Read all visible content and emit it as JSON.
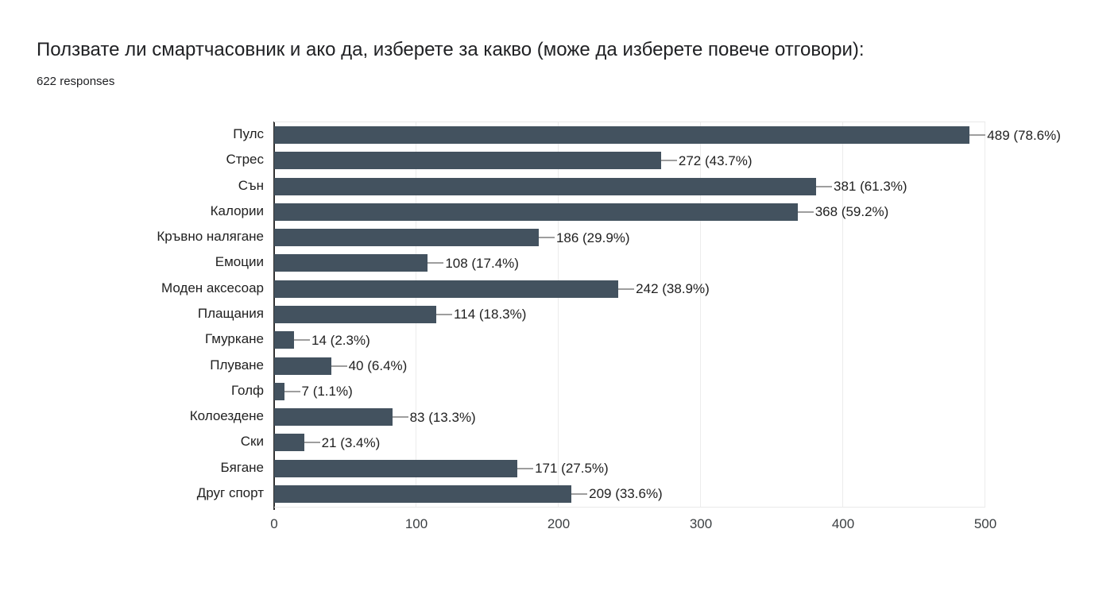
{
  "header": {
    "title": "Ползвате ли смартчасовник и ако да, изберете за какво (може да изберете повече отговори):",
    "responses": "622 responses"
  },
  "chart_data": {
    "type": "bar",
    "orientation": "horizontal",
    "title": "Ползвате ли смартчасовник и ако да, изберете за какво (може да изберете повече отговори):",
    "subtitle": "622 responses",
    "categories": [
      "Пулс",
      "Стрес",
      "Сън",
      "Калории",
      "Кръвно налягане",
      "Емоции",
      "Моден аксесоар",
      "Плащания",
      "Гмуркане",
      "Плуване",
      "Голф",
      "Колоездене",
      "Ски",
      "Бягане",
      "Друг спорт"
    ],
    "values": [
      489,
      272,
      381,
      368,
      186,
      108,
      242,
      114,
      14,
      40,
      7,
      83,
      21,
      171,
      209
    ],
    "percentages": [
      78.6,
      43.7,
      61.3,
      59.2,
      29.9,
      17.4,
      38.9,
      18.3,
      2.3,
      6.4,
      1.1,
      13.3,
      3.4,
      27.5,
      33.6
    ],
    "label_format": "{value} ({percent}%)",
    "xlim": [
      0,
      500
    ],
    "x_ticks": [
      0,
      100,
      200,
      300,
      400,
      500
    ],
    "grid": true,
    "legend": "none",
    "colors": {
      "bar": "#43525f",
      "leader_line": "#9e9e9e",
      "gridline": "#ececec",
      "axis_line": "#333333",
      "plot_border": "#e9e9e9",
      "text": "#212121"
    }
  }
}
